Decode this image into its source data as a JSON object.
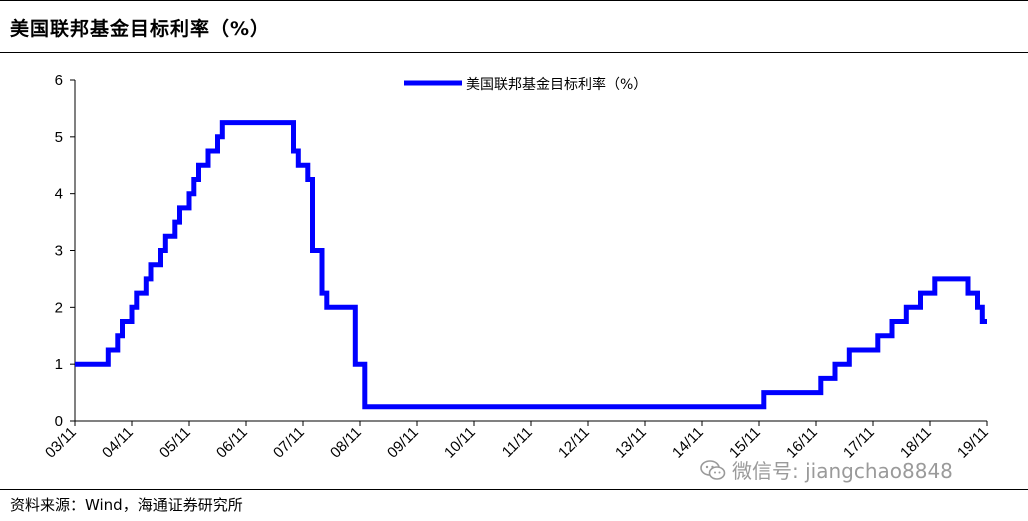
{
  "title": "美国联邦基金目标利率（%）",
  "source": "资料来源：Wind，海通证券研究所",
  "watermark": "微信号: jiangchao8848",
  "watermark_icon": "wechat-icon",
  "colors": {
    "series": "#0000ff",
    "axis": "#000000",
    "rule": "#000000"
  },
  "chart_data": {
    "type": "line",
    "title": "美国联邦基金目标利率（%）",
    "xlabel": "",
    "ylabel": "",
    "ylim": [
      0,
      6
    ],
    "yticks": [
      0,
      1,
      2,
      3,
      4,
      5,
      6
    ],
    "xlim": [
      "2003-11",
      "2019-11"
    ],
    "xtick_labels": [
      "03/11",
      "04/11",
      "05/11",
      "06/11",
      "07/11",
      "08/11",
      "09/11",
      "10/11",
      "11/11",
      "12/11",
      "13/11",
      "14/11",
      "15/11",
      "16/11",
      "17/11",
      "18/11",
      "19/11"
    ],
    "grid": false,
    "legend_position": "top-center",
    "step": true,
    "series": [
      {
        "name": "美国联邦基金目标利率（%）",
        "color": "#0000ff",
        "points": [
          [
            "2003-11",
            1.0
          ],
          [
            "2004-06",
            1.25
          ],
          [
            "2004-08",
            1.5
          ],
          [
            "2004-09",
            1.75
          ],
          [
            "2004-11",
            2.0
          ],
          [
            "2004-12",
            2.25
          ],
          [
            "2005-02",
            2.5
          ],
          [
            "2005-03",
            2.75
          ],
          [
            "2005-05",
            3.0
          ],
          [
            "2005-06",
            3.25
          ],
          [
            "2005-08",
            3.5
          ],
          [
            "2005-09",
            3.75
          ],
          [
            "2005-11",
            4.0
          ],
          [
            "2005-12",
            4.25
          ],
          [
            "2006-01",
            4.5
          ],
          [
            "2006-03",
            4.75
          ],
          [
            "2006-05",
            5.0
          ],
          [
            "2006-06",
            5.25
          ],
          [
            "2007-09",
            4.75
          ],
          [
            "2007-10",
            4.5
          ],
          [
            "2007-12",
            4.25
          ],
          [
            "2008-01",
            3.0
          ],
          [
            "2008-03",
            2.25
          ],
          [
            "2008-04",
            2.0
          ],
          [
            "2008-10",
            1.5
          ],
          [
            "2008-10",
            1.0
          ],
          [
            "2008-12",
            0.25
          ],
          [
            "2015-12",
            0.5
          ],
          [
            "2016-12",
            0.75
          ],
          [
            "2017-03",
            1.0
          ],
          [
            "2017-06",
            1.25
          ],
          [
            "2017-12",
            1.5
          ],
          [
            "2018-03",
            1.75
          ],
          [
            "2018-06",
            2.0
          ],
          [
            "2018-09",
            2.25
          ],
          [
            "2018-12",
            2.5
          ],
          [
            "2019-07",
            2.25
          ],
          [
            "2019-09",
            2.0
          ],
          [
            "2019-10",
            1.75
          ],
          [
            "2019-11",
            1.75
          ]
        ]
      }
    ]
  }
}
